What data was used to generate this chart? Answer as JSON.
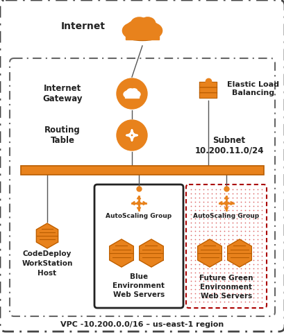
{
  "bg_color": "#ffffff",
  "orange": "#E8821C",
  "dark_orange": "#B85C00",
  "title_bottom": "VPC -10.200.0.0/16 – us-east-1 region",
  "text_internet": "Internet",
  "text_igw": "Internet\nGateway",
  "text_rt": "Routing\nTable",
  "text_elb": "Elastic Load\nBalancing",
  "text_subnet": "Subnet\n10.200.11.0/24",
  "text_asg1": "AutoScaling Group",
  "text_blue": "Blue\nEnvironment\nWeb Servers",
  "text_asg2": "AutoScaling Group",
  "text_green": "Future Green\nEnvironment\nWeb Servers",
  "text_codedeploy": "CodeDeploy\nWorkStation\nHost",
  "fig_w": 4.1,
  "fig_h": 4.83,
  "dpi": 100
}
